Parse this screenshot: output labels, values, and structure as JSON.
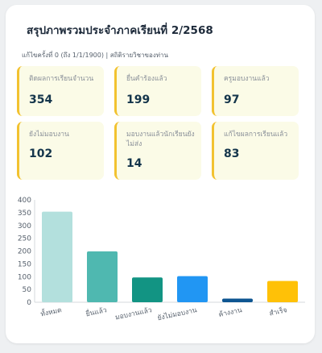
{
  "header": {
    "title": "สรุปภาพรวมประจำภาคเรียนที่ 2/2568",
    "subtitle": "แก้ไขครั้งที่ 0 (ถึง 1/1/1900) | สถิติรายวิชาของท่าน"
  },
  "stats": [
    {
      "label": "ติดผลการเรียนจำนวน",
      "value": "354"
    },
    {
      "label": "ยื่นคำร้องแล้ว",
      "value": "199"
    },
    {
      "label": "ครูมอบงานแล้ว",
      "value": "97"
    },
    {
      "label": "ยังไม่มอบงาน",
      "value": "102"
    },
    {
      "label": "มอบงานแล้วนักเรียนยังไม่ส่ง",
      "value": "14"
    },
    {
      "label": "แก้ไขผลการเรียนแล้ว",
      "value": "83"
    }
  ],
  "accent_color": "#f2c230",
  "chart_data": {
    "type": "bar",
    "categories": [
      "ทั้งหมด",
      "ยื่นแล้ว",
      "มอบงานแล้ว",
      "ยังไม่มอบงาน",
      "ค้างงาน",
      "สำเร็จ"
    ],
    "values": [
      354,
      199,
      97,
      102,
      14,
      83
    ],
    "colors": [
      "#b3e0dd",
      "#4fb8b0",
      "#129483",
      "#2196f3",
      "#0d5591",
      "#ffc107"
    ],
    "ylim": [
      0,
      400
    ],
    "yticks": [
      0,
      50,
      100,
      150,
      200,
      250,
      300,
      350,
      400
    ],
    "grid": false
  }
}
